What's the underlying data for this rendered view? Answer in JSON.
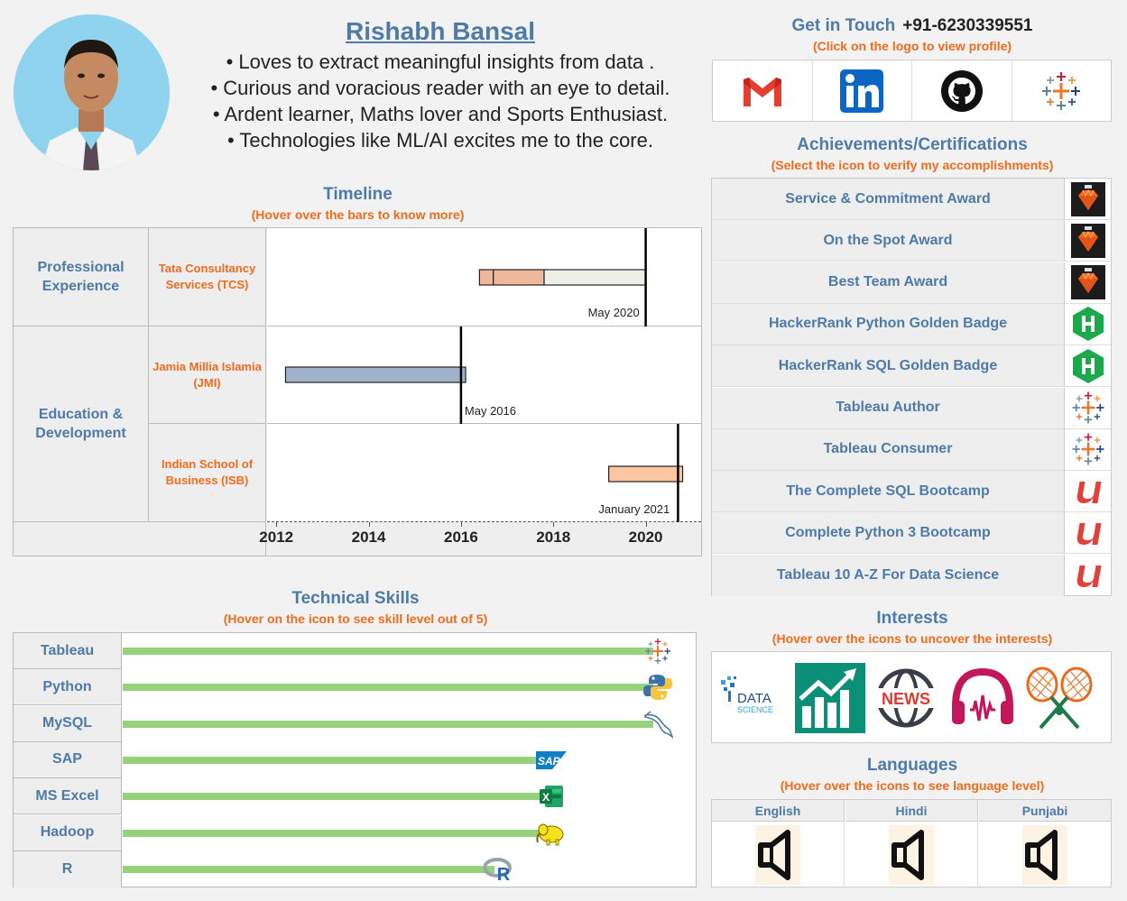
{
  "profile": {
    "name": "Rishabh Bansal",
    "bullets": [
      "• Loves to extract meaningful insights from data .",
      "• Curious and voracious reader with an eye to detail.",
      "• Ardent learner, Maths lover and Sports Enthusiast.",
      "• Technologies like ML/AI excites me to the core."
    ]
  },
  "contact": {
    "title": "Get in Touch",
    "phone": "+91-6230339551",
    "subtitle": "(Click on the logo to view profile)",
    "links": [
      {
        "icon": "gmail-icon"
      },
      {
        "icon": "linkedin-icon"
      },
      {
        "icon": "github-icon"
      },
      {
        "icon": "tableau-icon"
      }
    ]
  },
  "achievements": {
    "title": "Achievements/Certifications",
    "subtitle": "(Select the icon to verify my accomplishments)",
    "items": [
      {
        "label": "Service & Commitment Award",
        "icon": "tcs-gem-icon"
      },
      {
        "label": "On the Spot Award",
        "icon": "tcs-gem-icon"
      },
      {
        "label": "Best Team Award",
        "icon": "tcs-gem-icon"
      },
      {
        "label": "HackerRank Python Golden Badge",
        "icon": "hackerrank-icon"
      },
      {
        "label": "HackerRank SQL Golden Badge",
        "icon": "hackerrank-icon"
      },
      {
        "label": "Tableau Author",
        "icon": "tableau-icon"
      },
      {
        "label": "Tableau Consumer",
        "icon": "tableau-icon"
      },
      {
        "label": "The Complete SQL Bootcamp",
        "icon": "udemy-icon"
      },
      {
        "label": "Complete Python 3 Bootcamp",
        "icon": "udemy-icon"
      },
      {
        "label": "Tableau 10 A-Z For Data Science",
        "icon": "udemy-icon"
      }
    ]
  },
  "interests": {
    "title": "Interests",
    "subtitle": "(Hover over the icons to uncover the interests)",
    "items": [
      {
        "icon": "data-science-icon",
        "text_top": "DATA",
        "text_bottom": "SCIENCE"
      },
      {
        "icon": "stock-market-icon"
      },
      {
        "icon": "news-icon",
        "text": "NEWS"
      },
      {
        "icon": "music-headphones-icon"
      },
      {
        "icon": "badminton-icon"
      }
    ]
  },
  "languages": {
    "title": "Languages",
    "subtitle": "(Hover over the icons to see language level)",
    "items": [
      {
        "name": "English",
        "icon": "speaker-icon"
      },
      {
        "name": "Hindi",
        "icon": "speaker-icon"
      },
      {
        "name": "Punjabi",
        "icon": "speaker-icon"
      }
    ]
  },
  "timeline": {
    "title": "Timeline",
    "subtitle": "(Hover over the bars to know more)",
    "groups": [
      {
        "label": "Professional Experience"
      },
      {
        "label": "Education & Development"
      }
    ],
    "orgs": [
      {
        "label": "Tata Consultancy Services (TCS)"
      },
      {
        "label": "Jamia Millia Islamia (JMI)"
      },
      {
        "label": "Indian School of Business (ISB)"
      }
    ],
    "markers": [
      "May 2020",
      "May 2016",
      "January 2021"
    ],
    "colors": {
      "tcs": "#f0b89a",
      "tcs_rest": "#efefea",
      "jmi": "#9fb2c9",
      "isb": "#fcc6a0"
    }
  },
  "chart_data": {
    "type": "bar",
    "subtype": "gantt",
    "x_axis_ticks": [
      "2012",
      "2014",
      "2016",
      "2018",
      "2020"
    ],
    "xlim": [
      2011.8,
      2021.2
    ],
    "rows": [
      {
        "org": "Tata Consultancy Services (TCS)",
        "segments": [
          {
            "start": 2016.4,
            "end": 2016.7
          },
          {
            "start": 2016.7,
            "end": 2017.8
          },
          {
            "start": 2017.8,
            "end": 2020.0
          }
        ],
        "marker": {
          "x": 2020.0,
          "label": "May 2020"
        }
      },
      {
        "org": "Jamia Millia Islamia (JMI)",
        "segments": [
          {
            "start": 2012.2,
            "end": 2016.1
          }
        ],
        "marker": {
          "x": 2016.0,
          "label": "May 2016"
        }
      },
      {
        "org": "Indian School of Business (ISB)",
        "segments": [
          {
            "start": 2019.2,
            "end": 2020.8
          }
        ],
        "marker": {
          "x": 2020.7,
          "label": "January 2021"
        }
      }
    ]
  },
  "skills": {
    "title": "Technical Skills",
    "subtitle": "(Hover on the icon to see skill level out of 5)",
    "items": [
      {
        "name": "Tableau",
        "level": 5,
        "icon": "tableau-icon"
      },
      {
        "name": "Python",
        "level": 5,
        "icon": "python-icon"
      },
      {
        "name": "MySQL",
        "level": 5,
        "icon": "mysql-icon"
      },
      {
        "name": "SAP",
        "level": 4,
        "icon": "sap-icon",
        "icon_text": "SAP"
      },
      {
        "name": "MS Excel",
        "level": 4,
        "icon": "excel-icon",
        "icon_text": "X"
      },
      {
        "name": "Hadoop",
        "level": 4,
        "icon": "hadoop-icon"
      },
      {
        "name": "R",
        "level": 3.5,
        "icon": "r-icon",
        "icon_text": "R"
      }
    ],
    "max_level": 5
  }
}
